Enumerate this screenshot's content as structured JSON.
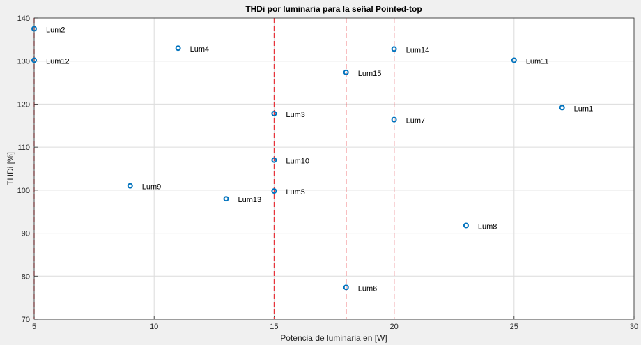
{
  "chart_data": {
    "type": "scatter",
    "title": "THDi por luminaria para la señal Pointed-top",
    "xlabel": "Potencia de luminaria en [W]",
    "ylabel": "THDi [%]",
    "xlim": [
      5,
      30
    ],
    "ylim": [
      70,
      140
    ],
    "xticks": [
      "5",
      "10",
      "15",
      "20",
      "25",
      "30"
    ],
    "yticks": [
      "70",
      "80",
      "90",
      "100",
      "110",
      "120",
      "130",
      "140"
    ],
    "grid": true,
    "marker_color": "#0072bd",
    "vline_color": "#e8333a",
    "vlines": [
      5,
      15,
      18,
      20
    ],
    "points": [
      {
        "label": "Lum1",
        "x": 27,
        "y": 119.2
      },
      {
        "label": "Lum2",
        "x": 5,
        "y": 137.5
      },
      {
        "label": "Lum3",
        "x": 15,
        "y": 117.8
      },
      {
        "label": "Lum4",
        "x": 11,
        "y": 133.0
      },
      {
        "label": "Lum5",
        "x": 15,
        "y": 99.8
      },
      {
        "label": "Lum6",
        "x": 18,
        "y": 77.4
      },
      {
        "label": "Lum7",
        "x": 20,
        "y": 116.4
      },
      {
        "label": "Lum8",
        "x": 23,
        "y": 91.8
      },
      {
        "label": "Lum9",
        "x": 9,
        "y": 101.0
      },
      {
        "label": "Lum10",
        "x": 15,
        "y": 107.0
      },
      {
        "label": "Lum11",
        "x": 25,
        "y": 130.2
      },
      {
        "label": "Lum12",
        "x": 5,
        "y": 130.2
      },
      {
        "label": "Lum13",
        "x": 13,
        "y": 98.0
      },
      {
        "label": "Lum14",
        "x": 20,
        "y": 132.8
      },
      {
        "label": "Lum15",
        "x": 18,
        "y": 127.4
      }
    ]
  }
}
